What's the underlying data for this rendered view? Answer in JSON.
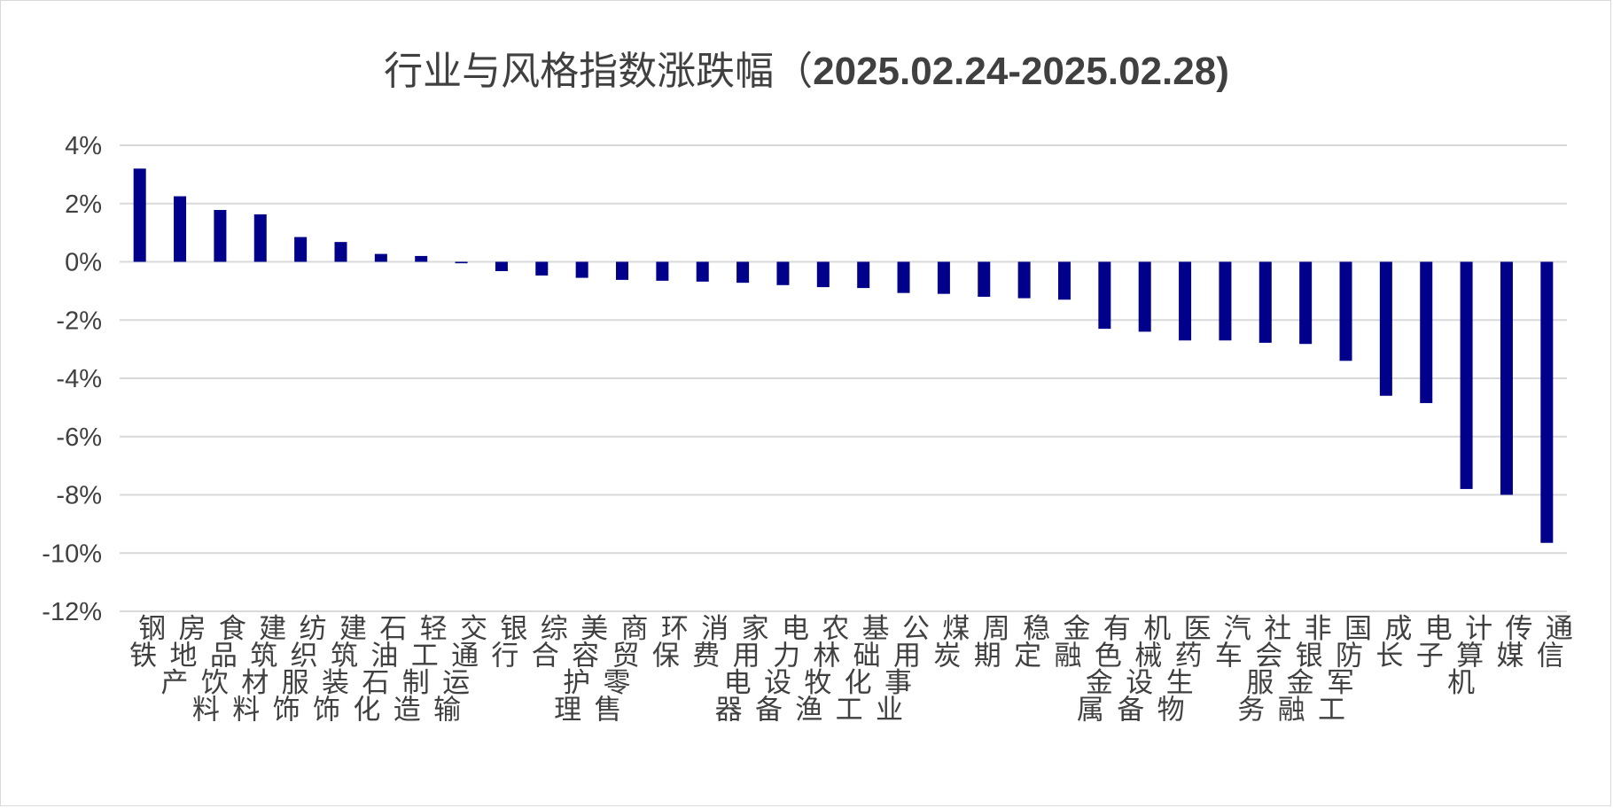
{
  "chart_data": {
    "type": "bar",
    "title": "行业与风格指数涨跌幅（",
    "title_dates": "2025.02.24-2025.02.28)",
    "xlabel": "",
    "ylabel": "",
    "ylim": [
      -12,
      4
    ],
    "y_ticks": [
      "4%",
      "2%",
      "0%",
      "-2%",
      "-4%",
      "-6%",
      "-8%",
      "-10%",
      "-12%"
    ],
    "y_tick_values": [
      4,
      2,
      0,
      -2,
      -4,
      -6,
      -8,
      -10,
      -12
    ],
    "grid": true,
    "legend": "none",
    "bar_color": "#00008B",
    "grid_color": "#d9d9d9",
    "categories": [
      "钢铁",
      "房地产",
      "食品饮料",
      "建筑材料",
      "纺织服饰",
      "建筑装饰",
      "石油石化",
      "轻工制造",
      "交通运输",
      "银行",
      "综合",
      "美容护理",
      "商贸零售",
      "环保",
      "消费",
      "家用电器",
      "电力设备",
      "农林牧渔",
      "基础化工",
      "公用事业",
      "煤炭",
      "周期",
      "稳定",
      "金融",
      "有色金属",
      "机械设备",
      "医药生物",
      "汽车",
      "社会服务",
      "非银金融",
      "国防军工",
      "成长",
      "电子",
      "计算机",
      "传媒",
      "通信"
    ],
    "values": [
      3.2,
      2.25,
      1.78,
      1.63,
      0.85,
      0.68,
      0.27,
      0.2,
      -0.05,
      -0.32,
      -0.47,
      -0.55,
      -0.62,
      -0.65,
      -0.68,
      -0.72,
      -0.8,
      -0.87,
      -0.9,
      -1.07,
      -1.1,
      -1.2,
      -1.25,
      -1.3,
      -2.3,
      -2.4,
      -2.7,
      -2.7,
      -2.78,
      -2.82,
      -3.4,
      -4.6,
      -4.85,
      -7.8,
      -8.0,
      -9.65
    ]
  }
}
